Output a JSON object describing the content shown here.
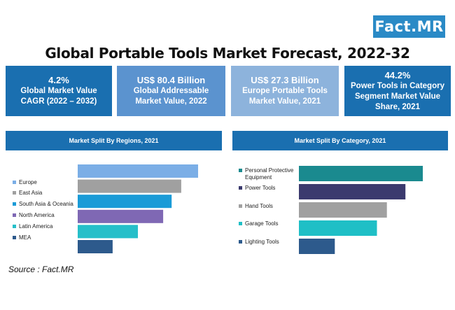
{
  "logo": "Fact.MR",
  "title": "Global Portable Tools Market Forecast, 2022-32",
  "stats": [
    {
      "value": "4.2%",
      "desc": "Global Market Value CAGR (2022 – 2032)",
      "color": "#1a6fb0"
    },
    {
      "value": "US$ 80.4 Billion",
      "desc": "Global Addressable Market Value, 2022",
      "color": "#5b93cf"
    },
    {
      "value": "US$ 27.3 Billion",
      "desc": "Europe Portable Tools Market Value, 2021",
      "color": "#8db3dc"
    },
    {
      "value": "44.2%",
      "desc": "Power Tools in Category Segment Market Value Share, 2021",
      "color": "#1a6fb0"
    }
  ],
  "source": "Source : Fact.MR",
  "chart_data": [
    {
      "type": "bar",
      "orientation": "horizontal",
      "title": "Market Split By Regions, 2021",
      "categories": [
        "Europe",
        "East Asia",
        "South Asia & Oceania",
        "North America",
        "Latin America",
        "MEA"
      ],
      "values": [
        100,
        86,
        78,
        71,
        50,
        29
      ],
      "colors": [
        "#7baee6",
        "#a0a0a0",
        "#1a9bd7",
        "#7f68b4",
        "#26bfc9",
        "#2d5a8c"
      ]
    },
    {
      "type": "bar",
      "orientation": "horizontal",
      "title": "Market Split By Category, 2021",
      "categories": [
        "Personal Protective Equipment",
        "Power Tools",
        "Hand Tools",
        "Garage Tools",
        "Lighting Tools"
      ],
      "values": [
        100,
        86,
        71,
        63,
        29
      ],
      "colors": [
        "#1a8a8f",
        "#3b3a6e",
        "#a0a0a0",
        "#1fbfc6",
        "#2d5a8c"
      ]
    }
  ]
}
